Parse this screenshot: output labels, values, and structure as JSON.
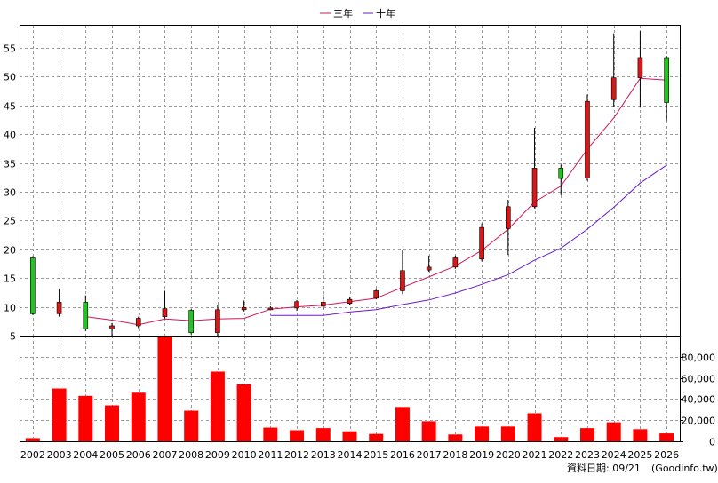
{
  "legend": {
    "ma3_label": "三年",
    "ma10_label": "十年"
  },
  "footer": {
    "source_label": "資料日期: 09/21",
    "site_label": "(Goodinfo.tw)"
  },
  "colors": {
    "up": "#d81818",
    "down": "#22c422",
    "ma3": "#d4145a",
    "ma10": "#6a1aca",
    "volume": "#ff0000",
    "wick": "#000000"
  },
  "chart_data": [
    {
      "type": "candlestick",
      "title": "",
      "categories": [
        "2002",
        "2003",
        "2004",
        "2005",
        "2006",
        "2007",
        "2008",
        "2009",
        "2010",
        "2011",
        "2012",
        "2013",
        "2014",
        "2015",
        "2016",
        "2017",
        "2018",
        "2019",
        "2020",
        "2021",
        "2022",
        "2023",
        "2024",
        "2025",
        "2026"
      ],
      "ylim": [
        5,
        59
      ],
      "yticks": [
        5,
        10,
        15,
        20,
        25,
        30,
        35,
        40,
        45,
        50,
        55
      ],
      "grid": true,
      "legend_position": "top-center",
      "ohlc": [
        {
          "open": 18.5,
          "high": 18.8,
          "low": 8.6,
          "close": 8.8
        },
        {
          "open": 8.8,
          "high": 13.2,
          "low": 8.3,
          "close": 10.8
        },
        {
          "open": 10.8,
          "high": 12.0,
          "low": 5.8,
          "close": 6.2
        },
        {
          "open": 6.2,
          "high": 7.2,
          "low": 5.0,
          "close": 6.7
        },
        {
          "open": 6.7,
          "high": 8.3,
          "low": 6.3,
          "close": 8.0
        },
        {
          "open": 8.3,
          "high": 12.8,
          "low": 8.0,
          "close": 9.7
        },
        {
          "open": 9.4,
          "high": 9.6,
          "low": 5.2,
          "close": 5.5
        },
        {
          "open": 5.5,
          "high": 10.4,
          "low": 5.0,
          "close": 9.5
        },
        {
          "open": 9.5,
          "high": 11.1,
          "low": 9.2,
          "close": 9.9
        },
        {
          "open": 9.6,
          "high": 10.1,
          "low": 9.4,
          "close": 9.8
        },
        {
          "open": 9.8,
          "high": 11.2,
          "low": 9.3,
          "close": 10.9
        },
        {
          "open": 10.1,
          "high": 12.2,
          "low": 9.6,
          "close": 10.8
        },
        {
          "open": 10.6,
          "high": 11.6,
          "low": 10.3,
          "close": 11.3
        },
        {
          "open": 11.5,
          "high": 13.2,
          "low": 11.3,
          "close": 12.8
        },
        {
          "open": 12.8,
          "high": 19.8,
          "low": 12.2,
          "close": 16.3
        },
        {
          "open": 16.4,
          "high": 18.9,
          "low": 16.1,
          "close": 16.9
        },
        {
          "open": 16.9,
          "high": 18.9,
          "low": 16.6,
          "close": 18.5
        },
        {
          "open": 18.3,
          "high": 24.5,
          "low": 17.9,
          "close": 23.8
        },
        {
          "open": 23.6,
          "high": 28.6,
          "low": 19.0,
          "close": 27.4
        },
        {
          "open": 27.4,
          "high": 41.1,
          "low": 27.1,
          "close": 34.1
        },
        {
          "open": 34.1,
          "high": 34.7,
          "low": 29.4,
          "close": 32.3
        },
        {
          "open": 32.4,
          "high": 46.9,
          "low": 31.9,
          "close": 45.7
        },
        {
          "open": 46.0,
          "high": 57.5,
          "low": 44.8,
          "close": 49.8
        },
        {
          "open": 49.8,
          "high": 57.9,
          "low": 44.6,
          "close": 53.3
        },
        {
          "open": 53.3,
          "high": 53.6,
          "low": 42.3,
          "close": 45.5
        }
      ],
      "series": [
        {
          "name": "三年",
          "values": [
            null,
            null,
            8.3,
            7.7,
            6.9,
            7.9,
            7.6,
            7.9,
            8.0,
            9.6,
            10.0,
            10.3,
            10.9,
            11.5,
            13.4,
            15.2,
            17.1,
            19.8,
            23.5,
            28.2,
            31.0,
            37.4,
            42.8,
            49.7,
            49.4
          ]
        },
        {
          "name": "十年",
          "values": [
            null,
            null,
            null,
            null,
            null,
            null,
            null,
            null,
            null,
            8.5,
            8.5,
            8.5,
            9.1,
            9.5,
            10.4,
            11.2,
            12.4,
            13.9,
            15.6,
            18.1,
            20.2,
            23.5,
            27.3,
            31.5,
            34.6
          ]
        }
      ]
    },
    {
      "type": "bar",
      "title": "",
      "categories": [
        "2002",
        "2003",
        "2004",
        "2005",
        "2006",
        "2007",
        "2008",
        "2009",
        "2010",
        "2011",
        "2012",
        "2013",
        "2014",
        "2015",
        "2016",
        "2017",
        "2018",
        "2019",
        "2020",
        "2021",
        "2022",
        "2023",
        "2024",
        "2025",
        "2026"
      ],
      "values": [
        3000,
        50000,
        43000,
        34000,
        46000,
        99000,
        29000,
        66000,
        54000,
        13000,
        10500,
        12500,
        9500,
        7000,
        32500,
        19000,
        6500,
        14000,
        14000,
        26500,
        4000,
        12500,
        18000,
        11500,
        7500
      ],
      "ylim": [
        0,
        100000
      ],
      "yticks": [
        0,
        20000,
        40000,
        60000,
        80000
      ],
      "ytick_labels": [
        "0",
        "20,000",
        "40,000",
        "60,000",
        "80,000"
      ],
      "grid": true
    }
  ]
}
